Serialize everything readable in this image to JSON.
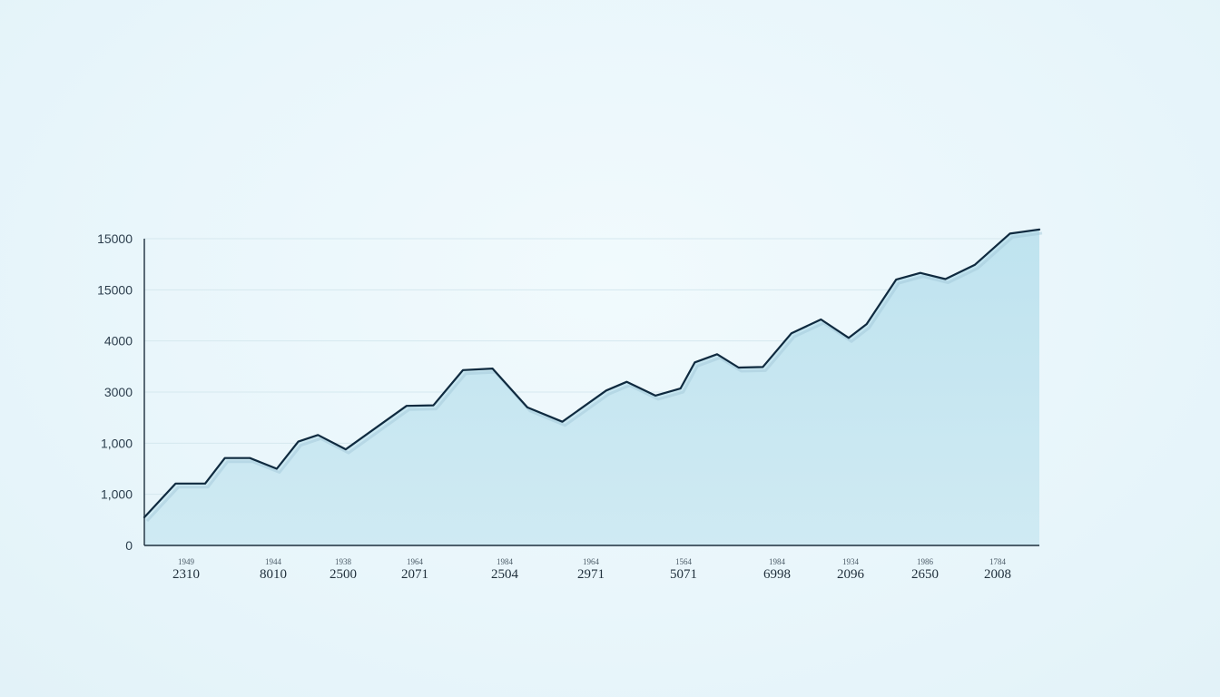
{
  "chart_data": {
    "type": "area",
    "colors": {
      "line": "#0f2a3f",
      "fill": "#c6e6f1",
      "grid": "#d5e8ef",
      "axis": "#1d2f3d"
    },
    "grid": true,
    "y_tick_labels": [
      "0",
      "1,000",
      "1,000",
      "3000",
      "4000",
      "15000",
      "15000"
    ],
    "x_tick_labels": [
      {
        "top": "1949",
        "bottom": "2310"
      },
      {
        "top": "1944",
        "bottom": "8010"
      },
      {
        "top": "1938",
        "bottom": "2500"
      },
      {
        "top": "1964",
        "bottom": "2071"
      },
      {
        "top": "1984",
        "bottom": "2504"
      },
      {
        "top": "1964",
        "bottom": "2971"
      },
      {
        "top": "1564",
        "bottom": "5071"
      },
      {
        "top": "1984",
        "bottom": "6998"
      },
      {
        "top": "1934",
        "bottom": "2096"
      },
      {
        "top": "1986",
        "bottom": "2650"
      },
      {
        "top": "1784",
        "bottom": "2008"
      }
    ],
    "series": [
      {
        "values": [
          [
            0,
            0.55
          ],
          [
            0.035,
            1.21
          ],
          [
            0.068,
            1.21
          ],
          [
            0.09,
            1.71
          ],
          [
            0.118,
            1.71
          ],
          [
            0.148,
            1.5
          ],
          [
            0.172,
            2.03
          ],
          [
            0.194,
            2.16
          ],
          [
            0.225,
            1.88
          ],
          [
            0.293,
            2.73
          ],
          [
            0.323,
            2.74
          ],
          [
            0.356,
            3.43
          ],
          [
            0.389,
            3.46
          ],
          [
            0.428,
            2.7
          ],
          [
            0.467,
            2.42
          ],
          [
            0.516,
            3.03
          ],
          [
            0.539,
            3.2
          ],
          [
            0.571,
            2.93
          ],
          [
            0.599,
            3.07
          ],
          [
            0.615,
            3.58
          ],
          [
            0.64,
            3.74
          ],
          [
            0.664,
            3.48
          ],
          [
            0.691,
            3.49
          ],
          [
            0.723,
            4.15
          ],
          [
            0.756,
            4.42
          ],
          [
            0.787,
            4.06
          ],
          [
            0.807,
            4.33
          ],
          [
            0.84,
            5.2
          ],
          [
            0.867,
            5.33
          ],
          [
            0.895,
            5.21
          ],
          [
            0.928,
            5.49
          ],
          [
            0.967,
            6.1
          ],
          [
            1.0,
            6.18
          ]
        ]
      }
    ]
  }
}
